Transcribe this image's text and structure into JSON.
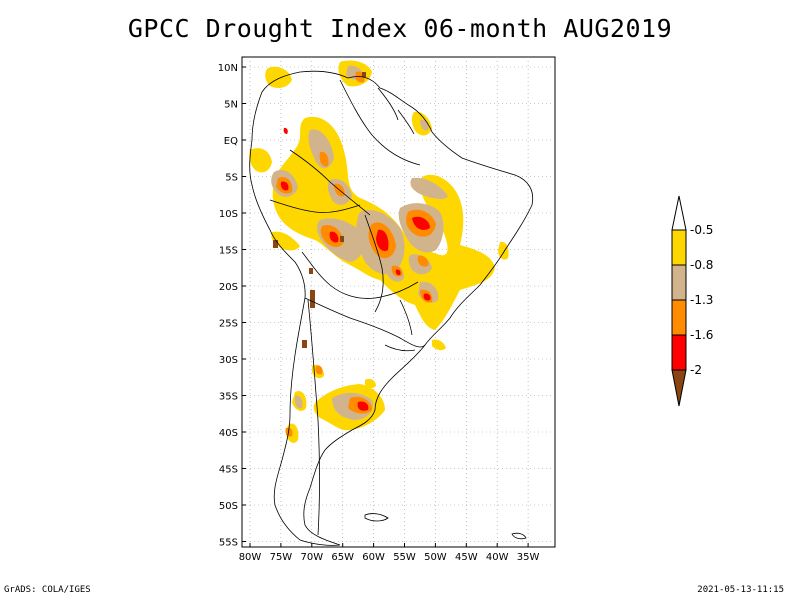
{
  "title": "GPCC Drought Index 06-month AUG2019",
  "footer": {
    "left": "GrADS: COLA/IGES",
    "right": "2021-05-13-11:15"
  },
  "map": {
    "lat_labels": [
      "10N",
      "5N",
      "EQ",
      "5S",
      "10S",
      "15S",
      "20S",
      "25S",
      "30S",
      "35S",
      "40S",
      "45S",
      "50S",
      "55S"
    ],
    "lon_labels": [
      "80W",
      "75W",
      "70W",
      "65W",
      "60W",
      "55W",
      "50W",
      "45W",
      "40W",
      "35W"
    ]
  },
  "legend": {
    "labels": [
      "-0.5",
      "-0.8",
      "-1.3",
      "-1.6",
      "-2"
    ],
    "colors": [
      "#ffffff",
      "#ffd700",
      "#d2b48c",
      "#ff8c00",
      "#ff0000",
      "#8b4513"
    ]
  },
  "colors": {
    "yellow": "#ffd700",
    "tan": "#d2b48c",
    "orange": "#ff8c00",
    "red": "#ff0000",
    "brown": "#8b4513"
  }
}
